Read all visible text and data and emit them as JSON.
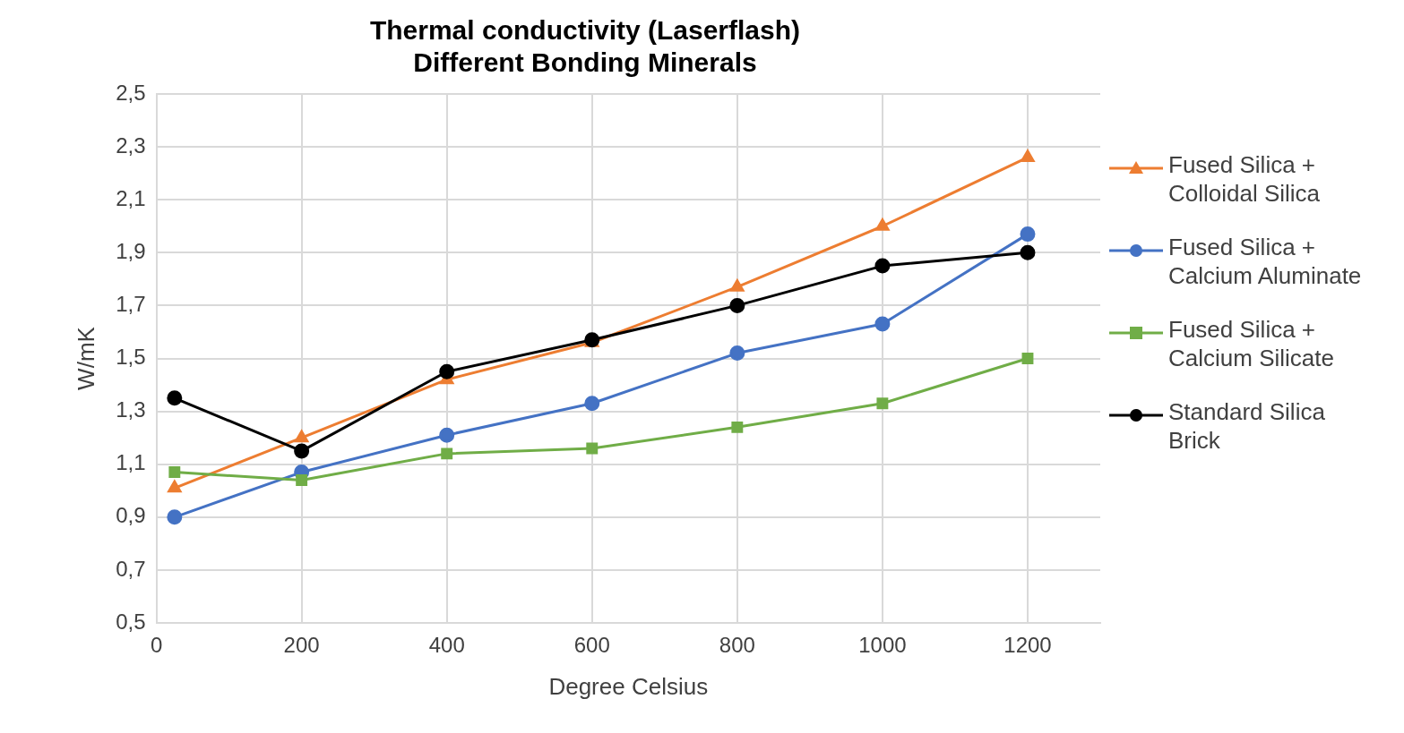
{
  "chart_data": {
    "type": "line",
    "title": "Thermal conductivity (Laserflash)\nDifferent Bonding Minerals",
    "xlabel": "Degree Celsius",
    "ylabel": "W/mK",
    "xlim": [
      0,
      1300
    ],
    "xticks": [
      0,
      200,
      400,
      600,
      800,
      1000,
      1200
    ],
    "ylim": [
      0.5,
      2.5
    ],
    "yticks": [
      {
        "value": 0.5,
        "label": "0,5"
      },
      {
        "value": 0.7,
        "label": "0,7"
      },
      {
        "value": 0.9,
        "label": "0,9"
      },
      {
        "value": 1.1,
        "label": "1,1"
      },
      {
        "value": 1.3,
        "label": "1,3"
      },
      {
        "value": 1.5,
        "label": "1,5"
      },
      {
        "value": 1.7,
        "label": "1,7"
      },
      {
        "value": 1.9,
        "label": "1,9"
      },
      {
        "value": 2.1,
        "label": "2,1"
      },
      {
        "value": 2.3,
        "label": "2,3"
      },
      {
        "value": 2.5,
        "label": "2,5"
      }
    ],
    "x": [
      25,
      200,
      400,
      600,
      800,
      1000,
      1200
    ],
    "grid": true,
    "legend": "right",
    "line_style": "solid",
    "series": [
      {
        "name": "Fused Silica + Colloidal Silica",
        "color": "#ed7d31",
        "marker": "triangle",
        "values": [
          1.01,
          1.2,
          1.42,
          1.56,
          1.77,
          2.0,
          2.26
        ]
      },
      {
        "name": "Fused Silica + Calcium Aluminate",
        "color": "#4472c4",
        "marker": "circle",
        "values": [
          0.9,
          1.07,
          1.21,
          1.33,
          1.52,
          1.63,
          1.97
        ]
      },
      {
        "name": "Fused Silica + Calcium Silicate",
        "color": "#70ad47",
        "marker": "square",
        "values": [
          1.07,
          1.04,
          1.14,
          1.16,
          1.24,
          1.33,
          1.5
        ]
      },
      {
        "name": "Standard Silica Brick",
        "color": "#000000",
        "marker": "circle",
        "values": [
          1.35,
          1.15,
          1.45,
          1.57,
          1.7,
          1.85,
          1.9
        ]
      }
    ]
  }
}
